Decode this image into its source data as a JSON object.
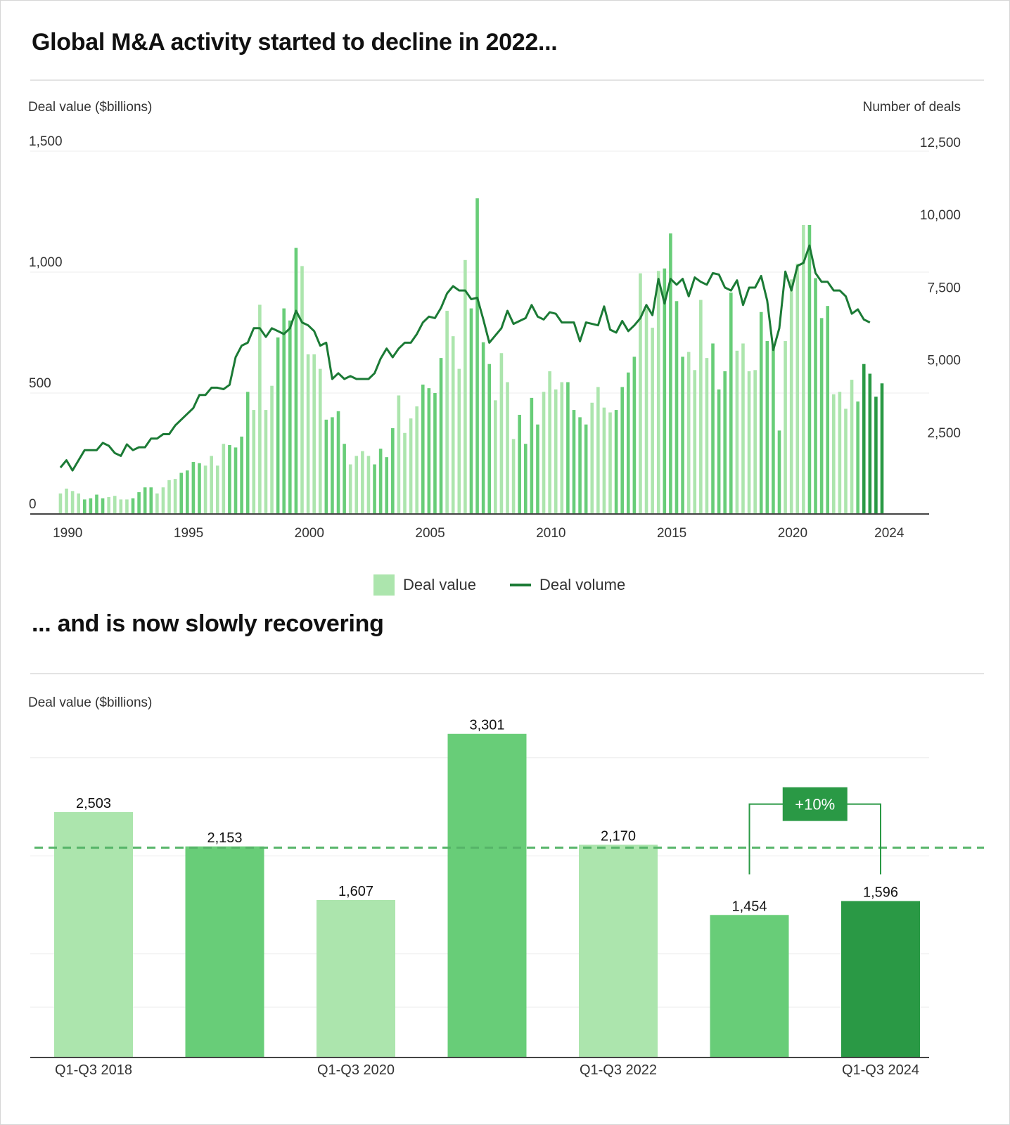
{
  "top": {
    "title": "Global M&A activity started to decline in 2022...",
    "left_axis_title": "Deal value ($billions)",
    "right_axis_title": "Number of deals",
    "legend": {
      "bar": "Deal value",
      "line": "Deal volume"
    }
  },
  "bottom": {
    "title": "... and is now slowly recovering",
    "axis_title": "Deal value ($billions)",
    "change_label": "+10%"
  },
  "colors": {
    "light": "#ace5ad",
    "medium": "#68cd78",
    "dark": "#2a9945",
    "line": "#1b7a35",
    "axis": "#444444",
    "grid": "#ececec"
  },
  "chart_data": [
    {
      "type": "bar",
      "combo": "bar-line",
      "x_start": 1989.75,
      "x_step": 0.25,
      "xlim": [
        1988.5,
        2025.7
      ],
      "x_ticks": [
        "1990",
        "1995",
        "2000",
        "2005",
        "2010",
        "2015",
        "2020",
        "2024"
      ],
      "x_tick_values": [
        1990,
        1995,
        2000,
        2005,
        2010,
        2015,
        2020,
        2024
      ],
      "y_left": {
        "label": "Deal value ($billions)",
        "ylim": [
          0,
          1500
        ],
        "ticks": [
          "0",
          "500",
          "1,000",
          "1,500"
        ],
        "tick_values": [
          0,
          500,
          1000,
          1500
        ]
      },
      "y_right": {
        "label": "Number of deals",
        "ylim": [
          0,
          12500
        ],
        "ticks": [
          "2,500",
          "5,000",
          "7,500",
          "10,000",
          "12,500"
        ],
        "tick_values": [
          2500,
          5000,
          7500,
          10000,
          12500
        ]
      },
      "series": [
        {
          "name": "Deal value",
          "axis": "left",
          "values": [
            85,
            105,
            95,
            85,
            60,
            65,
            80,
            65,
            70,
            75,
            60,
            60,
            65,
            90,
            110,
            110,
            85,
            110,
            140,
            145,
            170,
            180,
            215,
            210,
            200,
            240,
            200,
            290,
            285,
            275,
            320,
            505,
            430,
            865,
            430,
            530,
            730,
            850,
            800,
            1100,
            1025,
            660,
            660,
            600,
            390,
            400,
            425,
            290,
            205,
            240,
            260,
            240,
            205,
            270,
            235,
            355,
            490,
            335,
            395,
            445,
            535,
            520,
            500,
            645,
            840,
            735,
            600,
            1050,
            850,
            1305,
            710,
            620,
            470,
            665,
            545,
            310,
            410,
            290,
            480,
            370,
            505,
            590,
            515,
            545,
            545,
            430,
            400,
            370,
            460,
            525,
            440,
            420,
            430,
            525,
            585,
            650,
            995,
            850,
            770,
            1005,
            1015,
            1160,
            880,
            650,
            670,
            595,
            885,
            645,
            705,
            515,
            590,
            915,
            675,
            705,
            590,
            595,
            835,
            715,
            695,
            345,
            715,
            970,
            1035,
            1195,
            1195,
            975,
            810,
            860,
            495,
            505,
            435,
            555,
            465,
            620,
            580,
            485,
            540
          ]
        },
        {
          "name": "Deal volume",
          "axis": "right",
          "values": [
            1600,
            1850,
            1500,
            1850,
            2200,
            2200,
            2200,
            2450,
            2350,
            2100,
            2000,
            2400,
            2200,
            2300,
            2300,
            2600,
            2600,
            2750,
            2750,
            3050,
            3250,
            3450,
            3650,
            4100,
            4100,
            4350,
            4350,
            4300,
            4450,
            5400,
            5800,
            5900,
            6400,
            6400,
            6100,
            6400,
            6300,
            6200,
            6400,
            7000,
            6600,
            6500,
            6300,
            5800,
            5900,
            4650,
            4850,
            4650,
            4750,
            4650,
            4650,
            4650,
            4850,
            5350,
            5700,
            5400,
            5700,
            5900,
            5900,
            6200,
            6600,
            6800,
            6750,
            7100,
            7600,
            7850,
            7700,
            7700,
            7400,
            7450,
            6700,
            5900,
            6150,
            6400,
            7000,
            6550,
            6650,
            6750,
            7200,
            6800,
            6700,
            6950,
            6900,
            6600,
            6600,
            6600,
            5950,
            6600,
            6550,
            6500,
            7150,
            6350,
            6250,
            6650,
            6300,
            6500,
            6750,
            7200,
            6850,
            8100,
            7250,
            8100,
            7900,
            8100,
            7500,
            8150,
            8000,
            7900,
            8300,
            8250,
            7800,
            7700,
            8050,
            7200,
            7800,
            7800,
            8200,
            7350,
            5650,
            6400,
            8350,
            7700,
            8550,
            8650,
            9250,
            8300,
            8000,
            8000,
            7700,
            7700,
            7500,
            6900,
            7050,
            6700,
            6600
          ]
        }
      ]
    },
    {
      "type": "bar",
      "categories": [
        "Q1-Q3 2018",
        "Q1-Q3 2019",
        "Q1-Q3 2020",
        "Q1-Q3 2021",
        "Q1-Q3 2022",
        "Q1-Q3 2023",
        "Q1-Q3 2024"
      ],
      "category_labels_shown": [
        "Q1-Q3 2018",
        "",
        "Q1-Q3 2020",
        "",
        "Q1-Q3 2022",
        "",
        "Q1-Q3 2024"
      ],
      "values": [
        2503,
        2153,
        1607,
        3301,
        2170,
        1454,
        1596
      ],
      "value_labels": [
        "2,503",
        "2,153",
        "1,607",
        "3,301",
        "2,170",
        "1,454",
        "1,596"
      ],
      "bar_colors": [
        "light",
        "medium",
        "light",
        "medium",
        "light",
        "medium",
        "dark"
      ],
      "reference_line": 2140,
      "ylim": [
        0,
        3500
      ],
      "ylabel": "Deal value ($billions)",
      "annotation": {
        "text": "+10%",
        "from": "Q1-Q3 2023",
        "to": "Q1-Q3 2024"
      }
    }
  ]
}
